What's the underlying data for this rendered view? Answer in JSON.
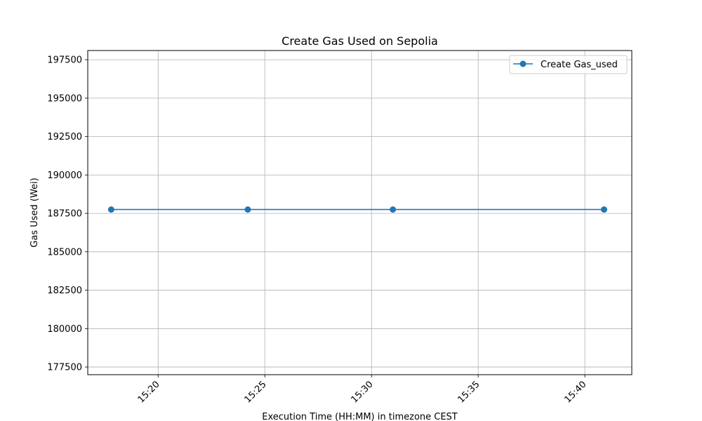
{
  "chart_data": {
    "type": "line",
    "title": "Create Gas Used on Sepolia",
    "xlabel": "Execution Time (HH:MM) in timezone CEST",
    "ylabel": "Gas Used (Wei)",
    "x_unit": "HH:MM",
    "xlim": [
      "15:16.7",
      "15:42.2"
    ],
    "ylim": [
      177000,
      198100
    ],
    "x_ticks": [
      "15:20",
      "15:25",
      "15:30",
      "15:35",
      "15:40"
    ],
    "y_ticks": [
      177500,
      180000,
      182500,
      185000,
      187500,
      190000,
      192500,
      195000,
      197500
    ],
    "y_tick_labels": [
      "177500",
      "180000",
      "182500",
      "185000",
      "187500",
      "190000",
      "192500",
      "195000",
      "197500"
    ],
    "grid": true,
    "legend_position": "top-right",
    "series": [
      {
        "name": "Create Gas_used",
        "color": "#1f77b4",
        "marker": "circle",
        "points": [
          {
            "x": "15:17.8",
            "y": 187750
          },
          {
            "x": "15:24.2",
            "y": 187750
          },
          {
            "x": "15:31.0",
            "y": 187750
          },
          {
            "x": "15:40.9",
            "y": 187750
          }
        ]
      }
    ]
  }
}
